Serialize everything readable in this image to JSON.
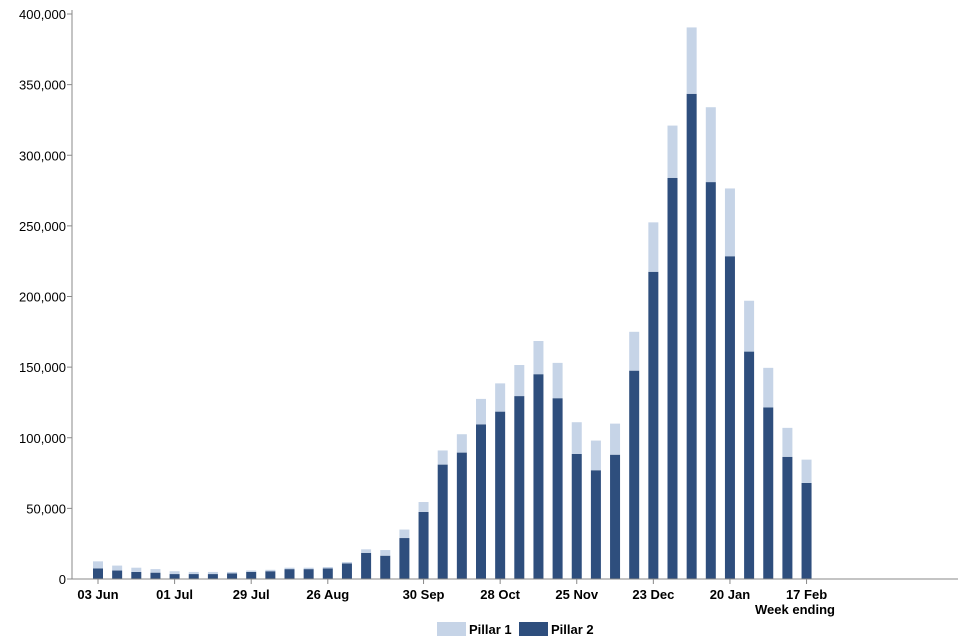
{
  "chart_data": {
    "type": "bar",
    "stacked": true,
    "xlabel": "Week ending",
    "ylim": [
      0,
      400000
    ],
    "y_ticks": [
      "0",
      "50,000",
      "100,000",
      "150,000",
      "200,000",
      "250,000",
      "300,000",
      "350,000",
      "400,000"
    ],
    "categories": [
      "03 Jun",
      "10 Jun",
      "17 Jun",
      "24 Jun",
      "01 Jul",
      "08 Jul",
      "15 Jul",
      "22 Jul",
      "29 Jul",
      "05 Aug",
      "12 Aug",
      "19 Aug",
      "26 Aug",
      "02 Sep",
      "09 Sep",
      "16 Sep",
      "23 Sep",
      "30 Sep",
      "07 Oct",
      "14 Oct",
      "21 Oct",
      "28 Oct",
      "04 Nov",
      "11 Nov",
      "18 Nov",
      "25 Nov",
      "02 Dec",
      "09 Dec",
      "16 Dec",
      "23 Dec",
      "30 Dec",
      "06 Jan",
      "13 Jan",
      "20 Jan",
      "27 Jan",
      "03 Feb",
      "10 Feb",
      "17 Feb"
    ],
    "x_tick_labels": [
      "03 Jun",
      "01 Jul",
      "29 Jul",
      "26 Aug",
      "30 Sep",
      "28 Oct",
      "25 Nov",
      "23 Dec",
      "20 Jan",
      "17 Feb"
    ],
    "series": [
      {
        "name": "Pillar 2",
        "color": "#2e4e7d",
        "values": [
          7500,
          6000,
          5000,
          4500,
          3500,
          3500,
          3500,
          4000,
          5000,
          5500,
          7000,
          7000,
          7500,
          11000,
          18500,
          16500,
          29000,
          47500,
          81000,
          89500,
          109500,
          118500,
          129500,
          145000,
          128000,
          88500,
          77000,
          88000,
          147500,
          217500,
          284000,
          343500,
          281000,
          228500,
          161000,
          121500,
          86500,
          68000
        ]
      },
      {
        "name": "Pillar 1",
        "color": "#c6d4e7",
        "values": [
          5000,
          3500,
          3000,
          2500,
          2000,
          1500,
          1500,
          1000,
          1000,
          1000,
          1000,
          1000,
          1000,
          1000,
          2500,
          4000,
          6000,
          7000,
          10000,
          13000,
          18000,
          20000,
          22000,
          23500,
          25000,
          22500,
          21000,
          22000,
          27500,
          35000,
          37000,
          47000,
          53000,
          48000,
          36000,
          28000,
          20500,
          16500
        ]
      }
    ],
    "legend": {
      "placement": "bottom"
    }
  }
}
